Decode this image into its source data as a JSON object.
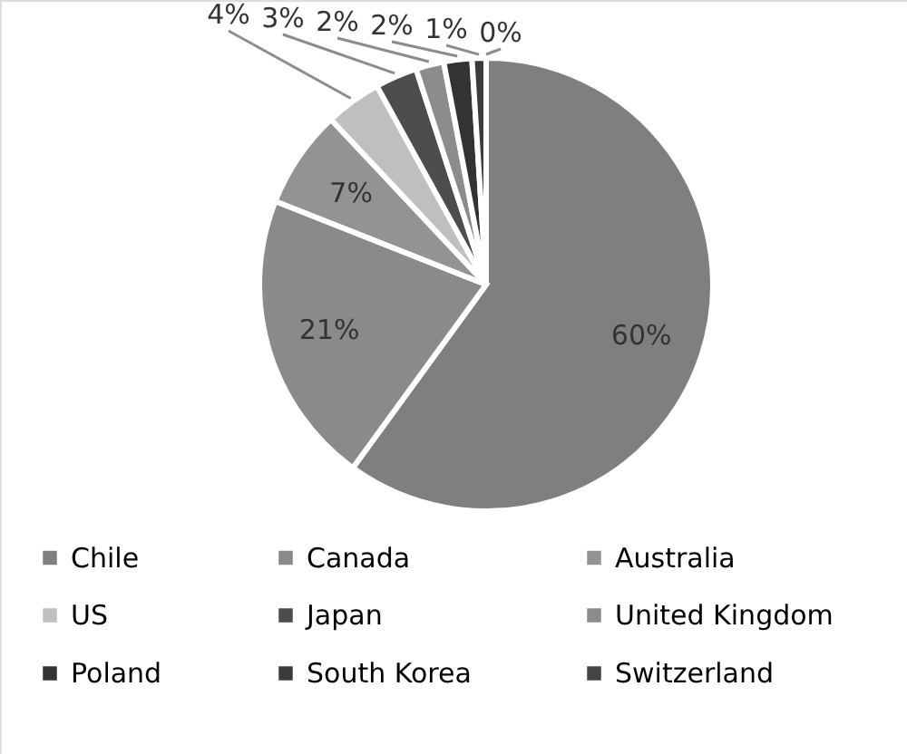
{
  "chart_data": {
    "type": "pie",
    "categories": [
      "Chile",
      "Canada",
      "Australia",
      "US",
      "Japan",
      "United Kingdom",
      "Poland",
      "South Korea",
      "Switzerland"
    ],
    "values": [
      60,
      21,
      7,
      4,
      3,
      2,
      2,
      1,
      0
    ],
    "colors": [
      "#7f7f7f",
      "#8a8a8a",
      "#939393",
      "#bfbfbf",
      "#4d4d4d",
      "#8c8c8c",
      "#333333",
      "#3b3b3b",
      "#444444"
    ],
    "value_labels": [
      "60%",
      "21%",
      "7%",
      "4%",
      "3%",
      "2%",
      "2%",
      "1%",
      "0%"
    ],
    "legend": "bottom"
  }
}
